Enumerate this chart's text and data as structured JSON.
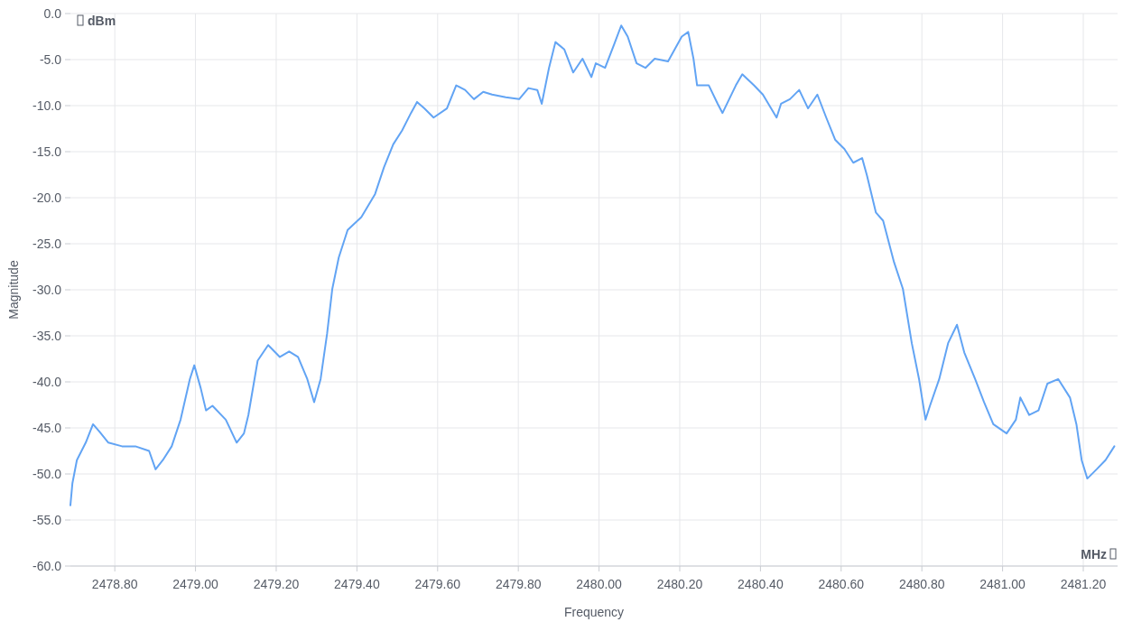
{
  "chart_data": {
    "type": "line",
    "xlabel": "Frequency",
    "ylabel": "Magnitude",
    "annotations": [
      "dBm",
      "MHz"
    ],
    "xlim": [
      2478.69,
      2481.285
    ],
    "xticks": [
      {
        "value": 2478.8,
        "label": "2478.80"
      },
      {
        "value": 2479,
        "label": "2479.00"
      },
      {
        "value": 2479.2,
        "label": "2479.20"
      },
      {
        "value": 2479.4,
        "label": "2479.40"
      },
      {
        "value": 2479.6,
        "label": "2479.60"
      },
      {
        "value": 2479.8,
        "label": "2479.80"
      },
      {
        "value": 2480,
        "label": "2480.00"
      },
      {
        "value": 2480.2,
        "label": "2480.20"
      },
      {
        "value": 2480.4,
        "label": "2480.40"
      },
      {
        "value": 2480.6,
        "label": "2480.60"
      },
      {
        "value": 2480.8,
        "label": "2480.80"
      },
      {
        "value": 2481,
        "label": "2481.00"
      },
      {
        "value": 2481.2,
        "label": "2481.20"
      }
    ],
    "ylim": [
      -60,
      0
    ],
    "yticks": [
      {
        "value": 0,
        "label": "0.0"
      },
      {
        "value": -5,
        "label": "-5.0"
      },
      {
        "value": -10,
        "label": "-10.0"
      },
      {
        "value": -15,
        "label": "-15.0"
      },
      {
        "value": -20,
        "label": "-20.0"
      },
      {
        "value": -25,
        "label": "-25.0"
      },
      {
        "value": -30,
        "label": "-30.0"
      },
      {
        "value": -35,
        "label": "-35.0"
      },
      {
        "value": -40,
        "label": "-40.0"
      },
      {
        "value": -45,
        "label": "-45.0"
      },
      {
        "value": -50,
        "label": "-50.0"
      },
      {
        "value": -55,
        "label": "-55.0"
      },
      {
        "value": -60,
        "label": "-60.0"
      }
    ],
    "grid": true,
    "marker": "none",
    "line_style": "solid",
    "series": [
      {
        "color": "#62a4f4",
        "x": [
          2478.69,
          2478.695,
          2478.706,
          2478.728,
          2478.746,
          2478.762,
          2478.784,
          2478.818,
          2478.851,
          2478.885,
          2478.901,
          2478.919,
          2478.941,
          2478.963,
          2478.986,
          2478.997,
          2479.013,
          2479.026,
          2479.042,
          2479.075,
          2479.102,
          2479.12,
          2479.131,
          2479.154,
          2479.18,
          2479.209,
          2479.232,
          2479.254,
          2479.277,
          2479.294,
          2479.31,
          2479.326,
          2479.339,
          2479.355,
          2479.377,
          2479.411,
          2479.445,
          2479.467,
          2479.49,
          2479.512,
          2479.534,
          2479.549,
          2479.567,
          2479.59,
          2479.623,
          2479.646,
          2479.668,
          2479.69,
          2479.713,
          2479.735,
          2479.769,
          2479.802,
          2479.825,
          2479.847,
          2479.858,
          2479.876,
          2479.892,
          2479.914,
          2479.936,
          2479.959,
          2479.981,
          2479.992,
          2480.015,
          2480.037,
          2480.055,
          2480.071,
          2480.093,
          2480.115,
          2480.138,
          2480.171,
          2480.205,
          2480.221,
          2480.234,
          2480.243,
          2480.272,
          2480.294,
          2480.306,
          2480.339,
          2480.355,
          2480.384,
          2480.406,
          2480.44,
          2480.451,
          2480.473,
          2480.496,
          2480.518,
          2480.541,
          2480.563,
          2480.585,
          2480.608,
          2480.63,
          2480.652,
          2480.664,
          2480.686,
          2480.704,
          2480.731,
          2480.753,
          2480.775,
          2480.793,
          2480.809,
          2480.82,
          2480.843,
          2480.865,
          2480.887,
          2480.905,
          2480.932,
          2480.954,
          2480.977,
          2481.01,
          2481.033,
          2481.044,
          2481.066,
          2481.089,
          2481.111,
          2481.138,
          2481.167,
          2481.183,
          2481.196,
          2481.21,
          2481.233,
          2481.255,
          2481.277
        ],
        "values": [
          -53.4,
          -51,
          -48.5,
          -46.6,
          -44.6,
          -45.4,
          -46.6,
          -47,
          -47,
          -47.5,
          -49.5,
          -48.5,
          -47,
          -44.1,
          -39.7,
          -38.2,
          -40.7,
          -43.1,
          -42.6,
          -44.1,
          -46.6,
          -45.6,
          -43.6,
          -37.7,
          -36,
          -37.3,
          -36.7,
          -37.3,
          -39.7,
          -42.2,
          -39.7,
          -34.8,
          -29.9,
          -26.5,
          -23.5,
          -22.1,
          -19.6,
          -16.7,
          -14.2,
          -12.7,
          -10.8,
          -9.6,
          -10.3,
          -11.3,
          -10.3,
          -7.8,
          -8.3,
          -9.3,
          -8.5,
          -8.8,
          -9.1,
          -9.3,
          -8.1,
          -8.3,
          -9.8,
          -5.9,
          -3.1,
          -3.9,
          -6.4,
          -4.9,
          -6.9,
          -5.4,
          -5.9,
          -3.4,
          -1.3,
          -2.5,
          -5.4,
          -5.9,
          -4.9,
          -5.2,
          -2.5,
          -2,
          -4.9,
          -7.8,
          -7.8,
          -9.8,
          -10.8,
          -7.8,
          -6.6,
          -7.8,
          -8.8,
          -11.3,
          -9.8,
          -9.3,
          -8.3,
          -10.3,
          -8.8,
          -11.3,
          -13.7,
          -14.7,
          -16.2,
          -15.7,
          -17.6,
          -21.6,
          -22.5,
          -27,
          -29.9,
          -35.8,
          -39.7,
          -44.1,
          -42.6,
          -39.7,
          -35.8,
          -33.8,
          -36.8,
          -39.7,
          -42.2,
          -44.6,
          -45.6,
          -44.1,
          -41.7,
          -43.6,
          -43.1,
          -40.2,
          -39.7,
          -41.7,
          -44.6,
          -48.5,
          -50.5,
          -49.5,
          -48.5,
          -47
        ]
      }
    ]
  }
}
